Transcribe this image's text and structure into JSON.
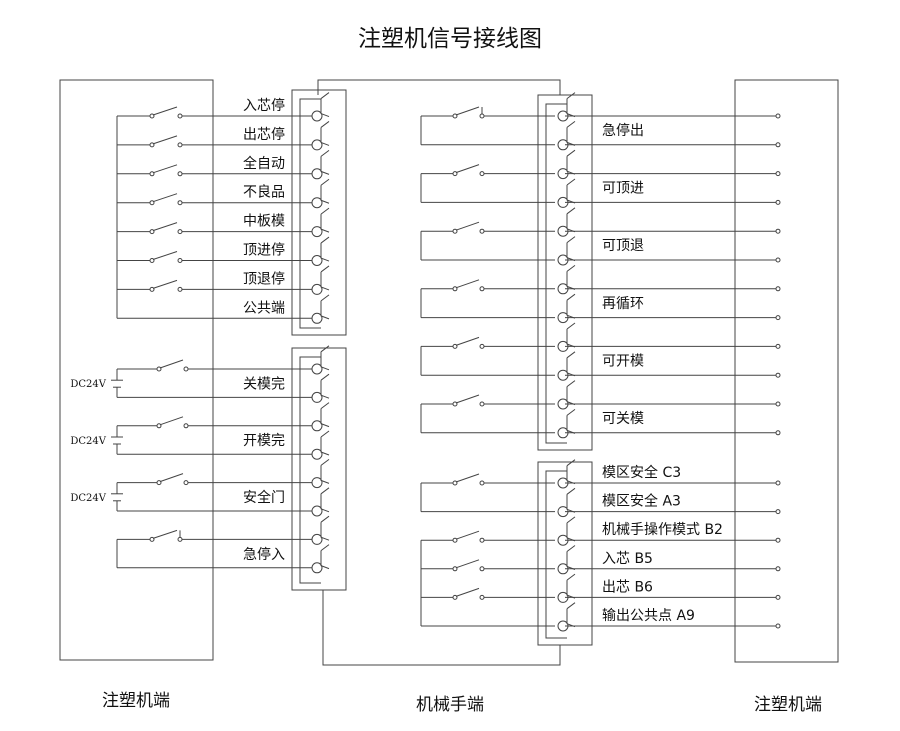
{
  "title": "注塑机信号接线图",
  "footer": {
    "left": "注塑机端",
    "middle": "机械手端",
    "right": "注塑机端"
  },
  "left_top_connector": {
    "labels": [
      "入芯停",
      "出芯停",
      "全自动",
      "不良品",
      "中板模",
      "顶进停",
      "顶退停",
      "公共端"
    ]
  },
  "left_bottom_connector": {
    "labels": [
      "关模完",
      "开模完",
      "安全门",
      "急停入"
    ],
    "supply_label": "DC24V"
  },
  "right_top_connector": {
    "labels": [
      "急停出",
      "可顶进",
      "可顶退",
      "再循环",
      "可开模",
      "可关模"
    ]
  },
  "right_bottom_connector": {
    "labels": [
      "模区安全 C3",
      "模区安全 A3",
      "机械手操作模式 B2",
      "入芯 B5",
      "出芯 B6",
      "输出公共点 A9"
    ]
  }
}
